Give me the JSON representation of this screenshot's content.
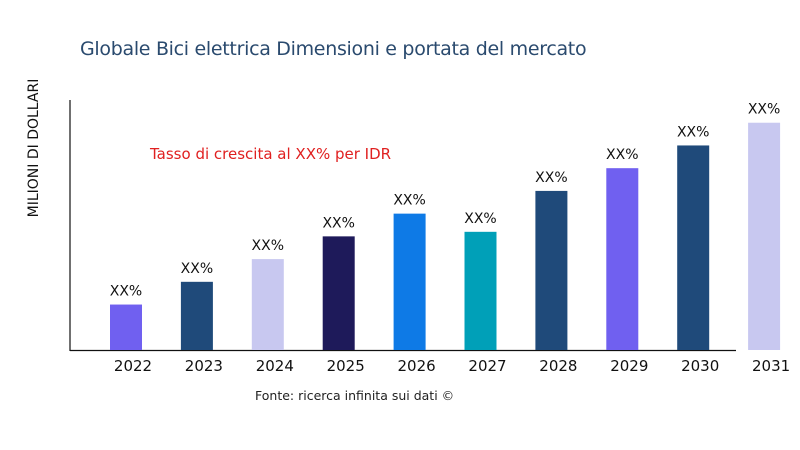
{
  "chart_data": {
    "type": "bar",
    "title": "Globale Bici elettrica Dimensioni e portata del mercato",
    "ylabel": "MILIONI DI DOLLARI",
    "xlabel": "",
    "annotation": "Tasso di crescita al XX% per IDR",
    "source": "Fonte: ricerca infinita sui dati ©",
    "categories": [
      "2022",
      "2023",
      "2024",
      "2025",
      "2026",
      "2027",
      "2028",
      "2029",
      "2030",
      "2031"
    ],
    "values": [
      20,
      30,
      40,
      50,
      60,
      52,
      70,
      80,
      90,
      100
    ],
    "data_labels": [
      "XX%",
      "XX%",
      "XX%",
      "XX%",
      "XX%",
      "XX%",
      "XX%",
      "XX%",
      "XX%",
      "XX%"
    ],
    "colors": [
      "#7060f0",
      "#1f4a7a",
      "#c8c8f0",
      "#1e1a5a",
      "#0e7ae6",
      "#00a0b8",
      "#1f4a7a",
      "#7060f0",
      "#1f4a7a",
      "#c8c8f0"
    ],
    "ylim": [
      0,
      110
    ],
    "grid": false,
    "y_ticks_shown": false
  }
}
